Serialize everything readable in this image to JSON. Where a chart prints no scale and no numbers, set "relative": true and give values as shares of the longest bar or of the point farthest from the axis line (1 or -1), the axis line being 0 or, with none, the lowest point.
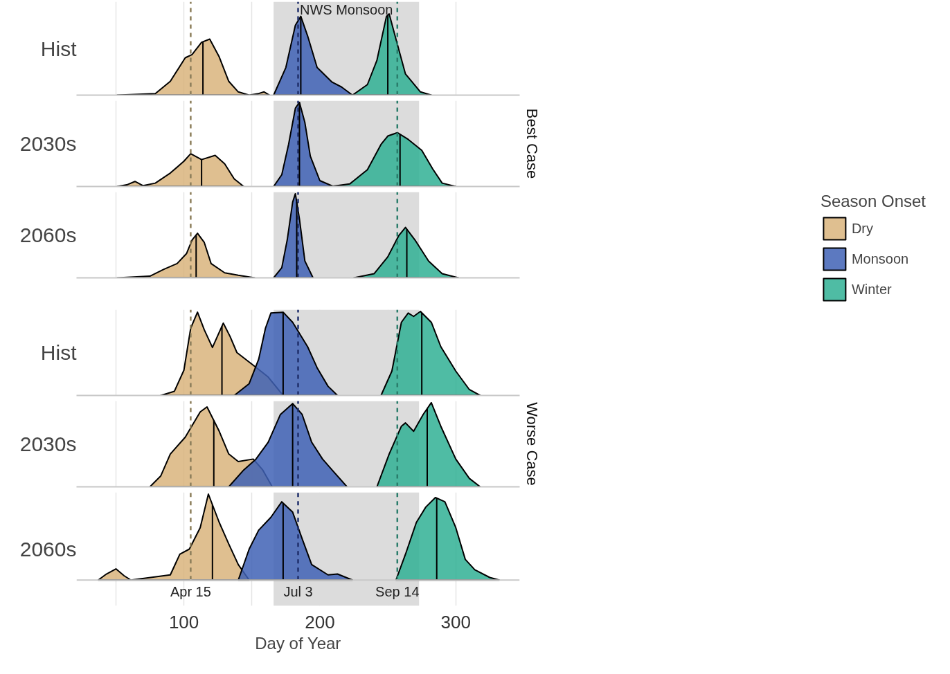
{
  "chart_data": [
    {
      "type": "area",
      "relative": true,
      "ylabel": "Hist",
      "xlim": [
        21,
        347
      ],
      "xticks": [
        {
          "value": 50,
          "label": null
        },
        100,
        {
          "value": 150,
          "label": null
        },
        200,
        {
          "value": 250,
          "label": null
        },
        300
      ],
      "grid": "x",
      "tick_labels": false,
      "series": [
        {
          "color": "#d9b47c",
          "x": [
            51,
            79,
            90,
            101,
            106,
            113,
            119,
            126,
            133,
            140,
            148,
            155,
            159,
            163
          ],
          "values": [
            0,
            0.02,
            0.17,
            0.46,
            0.5,
            0.65,
            0.69,
            0.47,
            0.17,
            0.04,
            0,
            0.02,
            0.04,
            0
          ]
        },
        {
          "color": "#4062b5",
          "x": [
            166,
            175,
            182,
            186,
            191,
            198,
            209,
            216,
            224
          ],
          "values": [
            0,
            0.34,
            0.86,
            0.97,
            0.73,
            0.34,
            0.16,
            0.1,
            0
          ]
        },
        {
          "color": "#30b094",
          "x": [
            224,
            235,
            242,
            249,
            251,
            256,
            263,
            274,
            282
          ],
          "values": [
            0,
            0.13,
            0.43,
            0.97,
            1,
            0.69,
            0.26,
            0.04,
            0
          ]
        }
      ],
      "bands": [
        {
          "axis": "x",
          "from": 166,
          "to": 273,
          "label": "NWS Monsoon",
          "color": "#dcdcdc"
        }
      ],
      "ref_lines": [
        {
          "axis": "x",
          "value": 105,
          "color": "#8b7d5a",
          "line_style": "dashed"
        },
        {
          "axis": "x",
          "value": 184,
          "color": "#1f2f6b",
          "line_style": "dashed"
        },
        {
          "axis": "x",
          "value": 257,
          "color": "#2a7d6b",
          "line_style": "dashed"
        },
        {
          "axis": "x",
          "value": 114,
          "color": "#000000",
          "line_style": "solid"
        },
        {
          "axis": "x",
          "value": 186,
          "color": "#000000",
          "line_style": "solid"
        },
        {
          "axis": "x",
          "value": 250,
          "color": "#000000",
          "line_style": "solid"
        }
      ]
    },
    {
      "type": "area",
      "relative": true,
      "ylabel": "2030s",
      "xlim": [
        21,
        347
      ],
      "xticks": [
        {
          "value": 50,
          "label": null
        },
        100,
        {
          "value": 150,
          "label": null
        },
        200,
        {
          "value": 250,
          "label": null
        },
        300
      ],
      "grid": "x",
      "tick_labels": false,
      "annotations": [
        "Best Case"
      ],
      "series": [
        {
          "color": "#d9b47c",
          "x": [
            51,
            58,
            64,
            70,
            79,
            90,
            100,
            105,
            113,
            123,
            130,
            137,
            144
          ],
          "values": [
            0,
            0.02,
            0.06,
            0.01,
            0.04,
            0.16,
            0.3,
            0.39,
            0.32,
            0.37,
            0.27,
            0.09,
            0
          ]
        },
        {
          "color": "#4062b5",
          "x": [
            166,
            172,
            177,
            182,
            185,
            189,
            193,
            200,
            210
          ],
          "values": [
            0,
            0.14,
            0.5,
            0.93,
            1,
            0.76,
            0.36,
            0.07,
            0
          ]
        },
        {
          "color": "#30b094",
          "x": [
            208,
            222,
            235,
            245,
            250,
            257,
            265,
            275,
            283,
            290,
            300
          ],
          "values": [
            0,
            0.03,
            0.2,
            0.5,
            0.6,
            0.64,
            0.56,
            0.43,
            0.21,
            0.04,
            0
          ]
        }
      ],
      "bands": [
        {
          "axis": "x",
          "from": 166,
          "to": 273,
          "color": "#dcdcdc"
        }
      ],
      "ref_lines": [
        {
          "axis": "x",
          "value": 105,
          "color": "#8b7d5a",
          "line_style": "dashed"
        },
        {
          "axis": "x",
          "value": 184,
          "color": "#1f2f6b",
          "line_style": "dashed"
        },
        {
          "axis": "x",
          "value": 257,
          "color": "#2a7d6b",
          "line_style": "dashed"
        },
        {
          "axis": "x",
          "value": 113,
          "color": "#000000",
          "line_style": "solid"
        },
        {
          "axis": "x",
          "value": 185,
          "color": "#000000",
          "line_style": "solid"
        },
        {
          "axis": "x",
          "value": 259,
          "color": "#000000",
          "line_style": "solid"
        }
      ]
    },
    {
      "type": "area",
      "relative": true,
      "ylabel": "2060s",
      "xlim": [
        21,
        347
      ],
      "xticks": [
        {
          "value": 50,
          "label": null
        },
        100,
        {
          "value": 150,
          "label": null
        },
        200,
        {
          "value": 250,
          "label": null
        },
        300
      ],
      "grid": "x",
      "tick_labels": false,
      "legend": "right",
      "legend_title": "Season Onset",
      "series": [
        {
          "name": "Dry",
          "color": "#d9b47c",
          "x": [
            51,
            75,
            85,
            95,
            102,
            106,
            110,
            115,
            120,
            130,
            140,
            152
          ],
          "values": [
            0,
            0.02,
            0.1,
            0.17,
            0.29,
            0.45,
            0.53,
            0.42,
            0.17,
            0.06,
            0.03,
            0
          ]
        },
        {
          "name": "Monsoon",
          "color": "#4062b5",
          "x": [
            166,
            172,
            176,
            180,
            182,
            185,
            189,
            195
          ],
          "values": [
            0,
            0.12,
            0.45,
            0.9,
            1,
            0.7,
            0.2,
            0
          ]
        },
        {
          "name": "Winter",
          "color": "#30b094",
          "x": [
            225,
            240,
            250,
            258,
            263,
            270,
            280,
            290,
            302
          ],
          "values": [
            0,
            0.05,
            0.25,
            0.5,
            0.6,
            0.45,
            0.2,
            0.05,
            0
          ]
        }
      ],
      "bands": [
        {
          "axis": "x",
          "from": 166,
          "to": 273,
          "color": "#dcdcdc"
        }
      ],
      "ref_lines": [
        {
          "axis": "x",
          "value": 105,
          "color": "#8b7d5a",
          "line_style": "dashed"
        },
        {
          "axis": "x",
          "value": 184,
          "color": "#1f2f6b",
          "line_style": "dashed"
        },
        {
          "axis": "x",
          "value": 257,
          "color": "#2a7d6b",
          "line_style": "dashed"
        },
        {
          "axis": "x",
          "value": 109,
          "color": "#000000",
          "line_style": "solid"
        },
        {
          "axis": "x",
          "value": 183,
          "color": "#000000",
          "line_style": "solid"
        },
        {
          "axis": "x",
          "value": 264,
          "color": "#000000",
          "line_style": "solid"
        }
      ]
    },
    {
      "type": "area",
      "relative": true,
      "ylabel": "Hist",
      "xlim": [
        21,
        347
      ],
      "xticks": [
        {
          "value": 50,
          "label": null
        },
        100,
        {
          "value": 150,
          "label": null
        },
        200,
        {
          "value": 250,
          "label": null
        },
        300
      ],
      "grid": "x",
      "tick_labels": false,
      "series": [
        {
          "color": "#d9b47c",
          "x": [
            83,
            93,
            100,
            105,
            110,
            115,
            121,
            129,
            134,
            139,
            151,
            162,
            173
          ],
          "values": [
            0,
            0.05,
            0.3,
            0.8,
            0.99,
            0.78,
            0.57,
            0.86,
            0.7,
            0.51,
            0.36,
            0.22,
            0
          ]
        },
        {
          "color": "#4062b5",
          "x": [
            137,
            148,
            155,
            160,
            164,
            173,
            180,
            191,
            198,
            206,
            213
          ],
          "values": [
            0,
            0.14,
            0.43,
            0.8,
            0.98,
            0.99,
            0.87,
            0.58,
            0.33,
            0.11,
            0
          ]
        },
        {
          "color": "#30b094",
          "x": [
            245,
            253,
            260,
            265,
            269,
            274,
            282,
            289,
            300,
            310,
            318
          ],
          "values": [
            0,
            0.29,
            0.87,
            0.98,
            0.94,
            1,
            0.87,
            0.58,
            0.29,
            0.07,
            0
          ]
        }
      ],
      "bands": [
        {
          "axis": "x",
          "from": 166,
          "to": 273,
          "color": "#dcdcdc"
        }
      ],
      "ref_lines": [
        {
          "axis": "x",
          "value": 105,
          "color": "#8b7d5a",
          "line_style": "dashed"
        },
        {
          "axis": "x",
          "value": 184,
          "color": "#1f2f6b",
          "line_style": "dashed"
        },
        {
          "axis": "x",
          "value": 257,
          "color": "#2a7d6b",
          "line_style": "dashed"
        },
        {
          "axis": "x",
          "value": 128,
          "color": "#000000",
          "line_style": "solid"
        },
        {
          "axis": "x",
          "value": 173,
          "color": "#000000",
          "line_style": "solid"
        },
        {
          "axis": "x",
          "value": 275,
          "color": "#000000",
          "line_style": "solid"
        }
      ]
    },
    {
      "type": "area",
      "relative": true,
      "ylabel": "2030s",
      "xlim": [
        21,
        347
      ],
      "xticks": [
        {
          "value": 50,
          "label": null
        },
        100,
        {
          "value": 150,
          "label": null
        },
        200,
        {
          "value": 250,
          "label": null
        },
        300
      ],
      "grid": "x",
      "tick_labels": false,
      "annotations": [
        "Worse Case"
      ],
      "series": [
        {
          "color": "#d9b47c",
          "x": [
            75,
            83,
            90,
            101,
            112,
            117,
            126,
            133,
            140,
            151,
            158,
            165
          ],
          "values": [
            0,
            0.13,
            0.39,
            0.59,
            0.89,
            0.95,
            0.66,
            0.39,
            0.3,
            0.33,
            0.2,
            0
          ]
        },
        {
          "color": "#4062b5",
          "x": [
            133,
            144,
            153,
            162,
            171,
            180,
            187,
            194,
            202,
            209,
            220
          ],
          "values": [
            0,
            0.2,
            0.33,
            0.53,
            0.86,
            0.99,
            0.86,
            0.53,
            0.33,
            0.2,
            0
          ]
        },
        {
          "color": "#30b094",
          "x": [
            242,
            251,
            260,
            263,
            269,
            276,
            282,
            289,
            300,
            310,
            318
          ],
          "values": [
            0,
            0.39,
            0.72,
            0.76,
            0.66,
            0.86,
            1,
            0.72,
            0.33,
            0.1,
            0
          ]
        }
      ],
      "bands": [
        {
          "axis": "x",
          "from": 166,
          "to": 273,
          "color": "#dcdcdc"
        }
      ],
      "ref_lines": [
        {
          "axis": "x",
          "value": 105,
          "color": "#8b7d5a",
          "line_style": "dashed"
        },
        {
          "axis": "x",
          "value": 184,
          "color": "#1f2f6b",
          "line_style": "dashed"
        },
        {
          "axis": "x",
          "value": 257,
          "color": "#2a7d6b",
          "line_style": "dashed"
        },
        {
          "axis": "x",
          "value": 122,
          "color": "#000000",
          "line_style": "solid"
        },
        {
          "axis": "x",
          "value": 180,
          "color": "#000000",
          "line_style": "solid"
        },
        {
          "axis": "x",
          "value": 279,
          "color": "#000000",
          "line_style": "solid"
        }
      ]
    },
    {
      "type": "area",
      "relative": true,
      "ylabel": "2060s",
      "xlabel": "Day of Year",
      "xlim": [
        21,
        347
      ],
      "xticks": [
        {
          "value": 50,
          "label": null
        },
        100,
        {
          "value": 150,
          "label": null
        },
        200,
        {
          "value": 250,
          "label": null
        },
        300
      ],
      "grid": "x",
      "tick_labels": "x",
      "series": [
        {
          "color": "#d9b47c",
          "x": [
            37,
            43,
            50,
            56,
            61,
            90,
            97,
            104,
            112,
            118,
            126,
            133,
            140,
            148
          ],
          "values": [
            0,
            0.07,
            0.13,
            0.05,
            0,
            0.06,
            0.3,
            0.36,
            0.61,
            1,
            0.67,
            0.42,
            0.18,
            0
          ]
        },
        {
          "color": "#4062b5",
          "x": [
            140,
            148,
            155,
            164,
            172,
            180,
            187,
            194,
            206,
            213,
            224
          ],
          "values": [
            0,
            0.36,
            0.58,
            0.73,
            0.91,
            0.79,
            0.48,
            0.18,
            0.06,
            0.07,
            0
          ]
        },
        {
          "color": "#30b094",
          "x": [
            256,
            263,
            271,
            278,
            285,
            292,
            300,
            307,
            314,
            325,
            332
          ],
          "values": [
            0,
            0.3,
            0.67,
            0.85,
            0.96,
            0.91,
            0.61,
            0.24,
            0.12,
            0.03,
            0
          ]
        }
      ],
      "bands": [
        {
          "axis": "x",
          "from": 166,
          "to": 273,
          "color": "#dcdcdc"
        }
      ],
      "ref_lines": [
        {
          "axis": "x",
          "value": 105,
          "label": "Apr 15",
          "color": "#8b7d5a",
          "line_style": "dashed"
        },
        {
          "axis": "x",
          "value": 184,
          "label": "Jul 3",
          "color": "#1f2f6b",
          "line_style": "dashed"
        },
        {
          "axis": "x",
          "value": 257,
          "label": "Sep 14",
          "color": "#2a7d6b",
          "line_style": "dashed"
        },
        {
          "axis": "x",
          "value": 121,
          "color": "#000000",
          "line_style": "solid"
        },
        {
          "axis": "x",
          "value": 173,
          "color": "#000000",
          "line_style": "solid"
        },
        {
          "axis": "x",
          "value": 286,
          "color": "#000000",
          "line_style": "solid"
        }
      ]
    }
  ]
}
